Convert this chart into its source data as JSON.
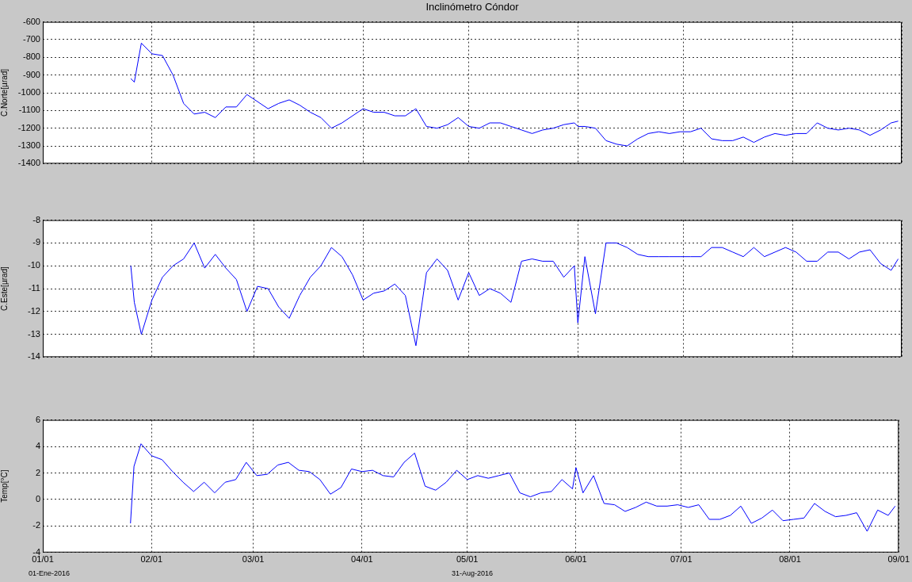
{
  "chart_data": [
    {
      "type": "line",
      "title": "Inclinómetro Cóndor",
      "ylabel": "C.Norte[µrad]",
      "grid": true,
      "tick_labels": "y",
      "xlim": [
        "2016-01-01",
        "2016-09-01"
      ],
      "xticks": [
        {
          "value": "2016-01-01",
          "label": null
        },
        {
          "value": "2016-02-01",
          "label": null
        },
        {
          "value": "2016-03-01",
          "label": null
        },
        {
          "value": "2016-04-01",
          "label": null
        },
        {
          "value": "2016-05-01",
          "label": null
        },
        {
          "value": "2016-06-01",
          "label": null
        },
        {
          "value": "2016-07-01",
          "label": null
        },
        {
          "value": "2016-08-01",
          "label": null
        },
        {
          "value": "2016-09-01",
          "label": null
        }
      ],
      "ylim": [
        -1400,
        -600
      ],
      "yticks": [
        -1400,
        -1300,
        -1200,
        -1100,
        -1000,
        -900,
        -800,
        -700,
        -600
      ],
      "x": [
        "2016-01-26",
        "2016-01-27",
        "2016-01-29",
        "2016-02-01",
        "2016-02-04",
        "2016-02-07",
        "2016-02-10",
        "2016-02-13",
        "2016-02-16",
        "2016-02-19",
        "2016-02-22",
        "2016-02-25",
        "2016-02-28",
        "2016-03-02",
        "2016-03-05",
        "2016-03-08",
        "2016-03-11",
        "2016-03-14",
        "2016-03-17",
        "2016-03-20",
        "2016-03-23",
        "2016-03-26",
        "2016-03-29",
        "2016-04-01",
        "2016-04-04",
        "2016-04-07",
        "2016-04-10",
        "2016-04-13",
        "2016-04-16",
        "2016-04-19",
        "2016-04-22",
        "2016-04-25",
        "2016-04-28",
        "2016-05-01",
        "2016-05-04",
        "2016-05-07",
        "2016-05-10",
        "2016-05-13",
        "2016-05-16",
        "2016-05-19",
        "2016-05-22",
        "2016-05-25",
        "2016-05-28",
        "2016-05-31",
        "2016-06-01",
        "2016-06-03",
        "2016-06-06",
        "2016-06-09",
        "2016-06-12",
        "2016-06-15",
        "2016-06-18",
        "2016-06-21",
        "2016-06-24",
        "2016-06-27",
        "2016-06-30",
        "2016-07-03",
        "2016-07-06",
        "2016-07-09",
        "2016-07-12",
        "2016-07-15",
        "2016-07-18",
        "2016-07-21",
        "2016-07-24",
        "2016-07-27",
        "2016-07-30",
        "2016-08-02",
        "2016-08-05",
        "2016-08-08",
        "2016-08-11",
        "2016-08-14",
        "2016-08-17",
        "2016-08-20",
        "2016-08-23",
        "2016-08-26",
        "2016-08-29",
        "2016-08-31"
      ],
      "series": [
        {
          "color": "#0000ff",
          "values": [
            -920,
            -940,
            -720,
            -780,
            -790,
            -900,
            -1060,
            -1120,
            -1110,
            -1140,
            -1080,
            -1080,
            -1010,
            -1050,
            -1090,
            -1060,
            -1040,
            -1070,
            -1110,
            -1140,
            -1200,
            -1170,
            -1130,
            -1090,
            -1110,
            -1110,
            -1130,
            -1130,
            -1090,
            -1190,
            -1200,
            -1180,
            -1140,
            -1190,
            -1200,
            -1170,
            -1170,
            -1190,
            -1210,
            -1230,
            -1210,
            -1200,
            -1180,
            -1170,
            -1190,
            -1190,
            -1200,
            -1270,
            -1290,
            -1300,
            -1260,
            -1230,
            -1220,
            -1230,
            -1220,
            -1220,
            -1200,
            -1260,
            -1270,
            -1270,
            -1250,
            -1280,
            -1250,
            -1230,
            -1240,
            -1230,
            -1230,
            -1170,
            -1200,
            -1210,
            -1200,
            -1210,
            -1240,
            -1210,
            -1170,
            -1160
          ]
        }
      ]
    },
    {
      "type": "line",
      "ylabel": "C.Este[µrad]",
      "grid": true,
      "tick_labels": "y",
      "xlim": [
        "2016-01-01",
        "2016-09-01"
      ],
      "xticks": [
        {
          "value": "2016-01-01",
          "label": null
        },
        {
          "value": "2016-02-01",
          "label": null
        },
        {
          "value": "2016-03-01",
          "label": null
        },
        {
          "value": "2016-04-01",
          "label": null
        },
        {
          "value": "2016-05-01",
          "label": null
        },
        {
          "value": "2016-06-01",
          "label": null
        },
        {
          "value": "2016-07-01",
          "label": null
        },
        {
          "value": "2016-08-01",
          "label": null
        },
        {
          "value": "2016-09-01",
          "label": null
        }
      ],
      "ylim": [
        -14,
        -8
      ],
      "yticks": [
        -14,
        -13,
        -12,
        -11,
        -10,
        -9,
        -8
      ],
      "x": [
        "2016-01-26",
        "2016-01-27",
        "2016-01-29",
        "2016-02-01",
        "2016-02-04",
        "2016-02-07",
        "2016-02-10",
        "2016-02-13",
        "2016-02-16",
        "2016-02-19",
        "2016-02-22",
        "2016-02-25",
        "2016-02-28",
        "2016-03-02",
        "2016-03-05",
        "2016-03-08",
        "2016-03-11",
        "2016-03-14",
        "2016-03-17",
        "2016-03-20",
        "2016-03-23",
        "2016-03-26",
        "2016-03-29",
        "2016-04-01",
        "2016-04-04",
        "2016-04-07",
        "2016-04-10",
        "2016-04-13",
        "2016-04-16",
        "2016-04-19",
        "2016-04-22",
        "2016-04-25",
        "2016-04-28",
        "2016-05-01",
        "2016-05-04",
        "2016-05-07",
        "2016-05-10",
        "2016-05-13",
        "2016-05-16",
        "2016-05-19",
        "2016-05-22",
        "2016-05-25",
        "2016-05-28",
        "2016-05-31",
        "2016-06-01",
        "2016-06-03",
        "2016-06-06",
        "2016-06-09",
        "2016-06-12",
        "2016-06-15",
        "2016-06-18",
        "2016-06-21",
        "2016-06-24",
        "2016-06-27",
        "2016-06-30",
        "2016-07-03",
        "2016-07-06",
        "2016-07-09",
        "2016-07-12",
        "2016-07-15",
        "2016-07-18",
        "2016-07-21",
        "2016-07-24",
        "2016-07-27",
        "2016-07-30",
        "2016-08-02",
        "2016-08-05",
        "2016-08-08",
        "2016-08-11",
        "2016-08-14",
        "2016-08-17",
        "2016-08-20",
        "2016-08-23",
        "2016-08-26",
        "2016-08-29",
        "2016-08-31"
      ],
      "series": [
        {
          "color": "#0000ff",
          "values": [
            -10,
            -11.6,
            -13,
            -11.5,
            -10.5,
            -10,
            -9.7,
            -9.0,
            -10.1,
            -9.5,
            -10.1,
            -10.6,
            -12,
            -10.9,
            -11,
            -11.8,
            -12.3,
            -11.3,
            -10.5,
            -10,
            -9.2,
            -9.6,
            -10.4,
            -11.5,
            -11.2,
            -11.1,
            -10.8,
            -11.3,
            -13.5,
            -10.3,
            -9.7,
            -10.2,
            -11.5,
            -10.3,
            -11.3,
            -11,
            -11.2,
            -11.6,
            -9.8,
            -9.7,
            -9.8,
            -9.8,
            -10.5,
            -10,
            -12.5,
            -9.6,
            -12.1,
            -9,
            -9,
            -9.2,
            -9.5,
            -9.6,
            -9.6,
            -9.6,
            -9.6,
            -9.6,
            -9.6,
            -9.2,
            -9.2,
            -9.4,
            -9.6,
            -9.2,
            -9.6,
            -9.4,
            -9.2,
            -9.4,
            -9.8,
            -9.8,
            -9.4,
            -9.4,
            -9.7,
            -9.4,
            -9.3,
            -9.9,
            -10.2,
            -9.7
          ]
        }
      ]
    },
    {
      "type": "line",
      "ylabel": "Temp[°C]",
      "grid": true,
      "annotations": [
        "01-Ene-2016",
        "31-Aug-2016"
      ],
      "xlim": [
        "2016-01-01",
        "2016-09-01"
      ],
      "xticks": [
        {
          "value": "2016-01-01",
          "label": "01/01"
        },
        {
          "value": "2016-02-01",
          "label": "02/01"
        },
        {
          "value": "2016-03-01",
          "label": "03/01"
        },
        {
          "value": "2016-04-01",
          "label": "04/01"
        },
        {
          "value": "2016-05-01",
          "label": "05/01"
        },
        {
          "value": "2016-06-01",
          "label": "06/01"
        },
        {
          "value": "2016-07-01",
          "label": "07/01"
        },
        {
          "value": "2016-08-01",
          "label": "08/01"
        },
        {
          "value": "2016-09-01",
          "label": "09/01"
        }
      ],
      "ylim": [
        -4,
        6
      ],
      "yticks": [
        -4,
        -2,
        0,
        2,
        4,
        6
      ],
      "x": [
        "2016-01-26",
        "2016-01-27",
        "2016-01-29",
        "2016-02-01",
        "2016-02-04",
        "2016-02-07",
        "2016-02-10",
        "2016-02-13",
        "2016-02-16",
        "2016-02-19",
        "2016-02-22",
        "2016-02-25",
        "2016-02-28",
        "2016-03-02",
        "2016-03-05",
        "2016-03-08",
        "2016-03-11",
        "2016-03-14",
        "2016-03-17",
        "2016-03-20",
        "2016-03-23",
        "2016-03-26",
        "2016-03-29",
        "2016-04-01",
        "2016-04-04",
        "2016-04-07",
        "2016-04-10",
        "2016-04-13",
        "2016-04-16",
        "2016-04-19",
        "2016-04-22",
        "2016-04-25",
        "2016-04-28",
        "2016-05-01",
        "2016-05-04",
        "2016-05-07",
        "2016-05-10",
        "2016-05-13",
        "2016-05-16",
        "2016-05-19",
        "2016-05-22",
        "2016-05-25",
        "2016-05-28",
        "2016-05-31",
        "2016-06-01",
        "2016-06-03",
        "2016-06-06",
        "2016-06-09",
        "2016-06-12",
        "2016-06-15",
        "2016-06-18",
        "2016-06-21",
        "2016-06-24",
        "2016-06-27",
        "2016-06-30",
        "2016-07-03",
        "2016-07-06",
        "2016-07-09",
        "2016-07-12",
        "2016-07-15",
        "2016-07-18",
        "2016-07-21",
        "2016-07-24",
        "2016-07-27",
        "2016-07-30",
        "2016-08-02",
        "2016-08-05",
        "2016-08-08",
        "2016-08-11",
        "2016-08-14",
        "2016-08-17",
        "2016-08-20",
        "2016-08-23",
        "2016-08-26",
        "2016-08-29",
        "2016-08-31"
      ],
      "series": [
        {
          "color": "#0000ff",
          "values": [
            -1.8,
            2.5,
            4.2,
            3.3,
            3.0,
            2.1,
            1.3,
            0.6,
            1.3,
            0.5,
            1.3,
            1.5,
            2.8,
            1.8,
            1.9,
            2.6,
            2.8,
            2.2,
            2.1,
            1.5,
            0.4,
            0.9,
            2.3,
            2.1,
            2.2,
            1.8,
            1.7,
            2.8,
            3.5,
            1.0,
            0.7,
            1.3,
            2.2,
            1.5,
            1.8,
            1.6,
            1.8,
            2.0,
            0.5,
            0.2,
            0.5,
            0.6,
            1.5,
            0.8,
            2.4,
            0.5,
            1.8,
            -0.3,
            -0.4,
            -0.9,
            -0.6,
            -0.2,
            -0.5,
            -0.5,
            -0.4,
            -0.6,
            -0.4,
            -1.5,
            -1.5,
            -1.2,
            -0.5,
            -1.8,
            -1.4,
            -0.8,
            -1.6,
            -1.5,
            -1.4,
            -0.3,
            -0.9,
            -1.3,
            -1.2,
            -1.0,
            -2.4,
            -0.8,
            -1.2,
            -0.5
          ]
        }
      ]
    }
  ]
}
